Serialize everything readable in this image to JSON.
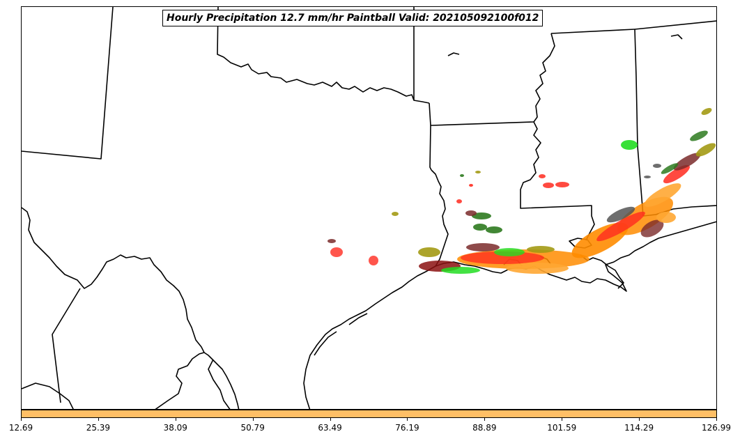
{
  "title": "Hourly Precipitation 12.7 mm/hr Paintball Valid: 202105092100f012",
  "colors": {
    "colorbar_fill": "#ffbf66",
    "border_line": "#000000",
    "red": "#ff2a1f",
    "dark_red": "#8b1010",
    "orange": "#ff8c00",
    "light_orange": "#ffa733",
    "green": "#22dd22",
    "dark_green": "#2d7a1f",
    "olive": "#a39a14",
    "gray": "#555555",
    "maroon": "#7a2a2a"
  },
  "colorbar": {
    "ticks": [
      "12.69",
      "25.39",
      "38.09",
      "50.79",
      "63.49",
      "76.19",
      "88.89",
      "101.59",
      "114.29",
      "126.99"
    ]
  }
}
